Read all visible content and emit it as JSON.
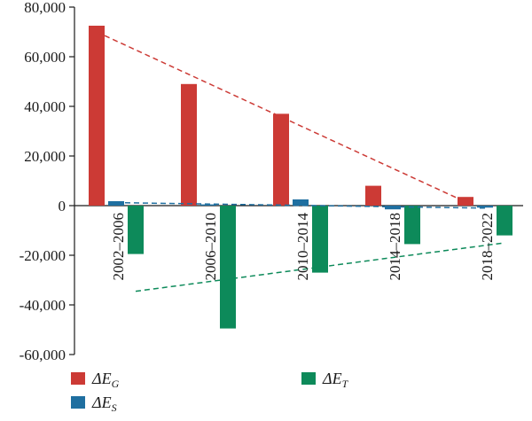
{
  "chart_data": {
    "type": "bar",
    "categories": [
      "2002–2006",
      "2006–2010",
      "2010–2014",
      "2014–2018",
      "2018–2022"
    ],
    "ylim": [
      -60000,
      80000
    ],
    "yticks": [
      80000,
      60000,
      40000,
      20000,
      0,
      -20000,
      -40000,
      -60000
    ],
    "ytick_labels": [
      "80,000",
      "60,000",
      "40,000",
      "20,000",
      "0",
      "-20,000",
      "-40,000",
      "-60,000"
    ],
    "grid": false,
    "legend_position": "bottom",
    "series": [
      {
        "name": "ΔE",
        "subscript": "G",
        "color": "#cc3a35",
        "values": [
          72500,
          49000,
          37000,
          8000,
          3500
        ]
      },
      {
        "name": "ΔE",
        "subscript": "S",
        "color": "#1f6fa0",
        "values": [
          1800,
          500,
          2500,
          -1500,
          -800
        ]
      },
      {
        "name": "ΔE",
        "subscript": "T",
        "color": "#0d8a5a",
        "values": [
          -19500,
          -49500,
          -27000,
          -15500,
          -12000
        ]
      }
    ],
    "trendlines": [
      {
        "series": "G",
        "color": "#cc3a35",
        "from": [
          0,
          70000
        ],
        "to": [
          4,
          1500
        ]
      },
      {
        "series": "S",
        "color": "#1f6fa0",
        "from": [
          0,
          1200
        ],
        "to": [
          4,
          -1000
        ]
      },
      {
        "series": "T",
        "color": "#0d8a5a",
        "from": [
          0,
          -34500
        ],
        "to": [
          4,
          -15000
        ]
      }
    ]
  }
}
